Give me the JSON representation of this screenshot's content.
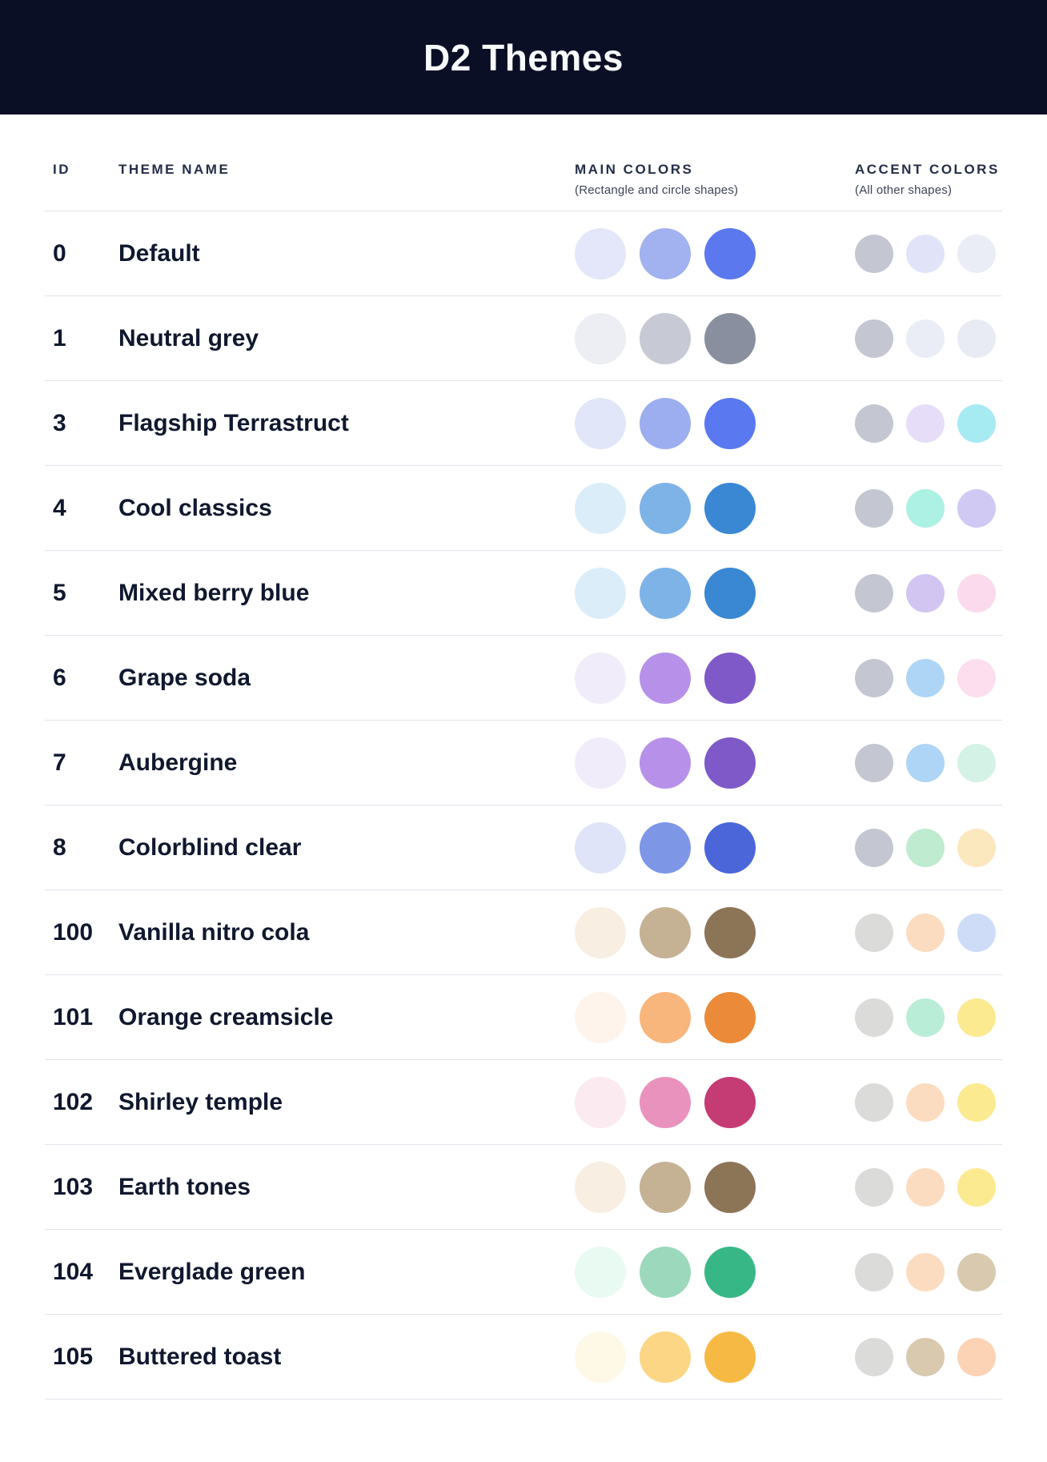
{
  "page": {
    "title": "D2 Themes"
  },
  "colors": {
    "banner_bg": "#0A0F25",
    "divider": "#E2E4ED",
    "heading_text": "#242E49",
    "row_text": "#10182F"
  },
  "table": {
    "headers": {
      "id": "ID",
      "theme_name": "THEME NAME",
      "main_colors": "MAIN COLORS",
      "main_colors_sub": "(Rectangle and circle shapes)",
      "accent_colors": "ACCENT COLORS",
      "accent_colors_sub": "(All other shapes)"
    },
    "rows": [
      {
        "id": "0",
        "name": "Default",
        "main": [
          "#E4E7F9",
          "#A2B1EF",
          "#5B78EE"
        ],
        "accent": [
          "#C4C7D2",
          "#E1E4F8",
          "#EAEDF6"
        ]
      },
      {
        "id": "1",
        "name": "Neutral grey",
        "main": [
          "#ECEEF3",
          "#C7CAD4",
          "#8A8FA0"
        ],
        "accent": [
          "#C4C7D2",
          "#EAEDF6",
          "#E8EBF4"
        ]
      },
      {
        "id": "3",
        "name": "Flagship Terrastruct",
        "main": [
          "#E2E6F9",
          "#9CADF0",
          "#5A78F0"
        ],
        "accent": [
          "#C4C7D2",
          "#E6DEF8",
          "#A6EAF2"
        ]
      },
      {
        "id": "4",
        "name": "Cool classics",
        "main": [
          "#DCEDFA",
          "#7EB3E8",
          "#3A87D4"
        ],
        "accent": [
          "#C4C7D2",
          "#ACF1E3",
          "#D0C9F4"
        ]
      },
      {
        "id": "5",
        "name": "Mixed berry blue",
        "main": [
          "#DCEDFA",
          "#7EB3E8",
          "#3A87D4"
        ],
        "accent": [
          "#C4C7D2",
          "#D2C5F1",
          "#FBDAED"
        ]
      },
      {
        "id": "6",
        "name": "Grape soda",
        "main": [
          "#F1ECFA",
          "#B791E9",
          "#8059C8"
        ],
        "accent": [
          "#C4C7D2",
          "#AED5F5",
          "#FCDEEF"
        ]
      },
      {
        "id": "7",
        "name": "Aubergine",
        "main": [
          "#F1ECFA",
          "#B791E9",
          "#8059C8"
        ],
        "accent": [
          "#C4C7D2",
          "#AED5F5",
          "#D5F2E6"
        ]
      },
      {
        "id": "8",
        "name": "Colorblind clear",
        "main": [
          "#DFE4F8",
          "#7D96E6",
          "#4A66D8"
        ],
        "accent": [
          "#C4C7D2",
          "#BFEBD1",
          "#FCE8BE"
        ]
      },
      {
        "id": "100",
        "name": "Vanilla nitro cola",
        "main": [
          "#F8EEE1",
          "#C5B295",
          "#8C7456"
        ],
        "accent": [
          "#DBDBD9",
          "#FCDCC0",
          "#CEDCF8"
        ]
      },
      {
        "id": "101",
        "name": "Orange creamsicle",
        "main": [
          "#FEF4EB",
          "#F8B57C",
          "#EB8A38"
        ],
        "accent": [
          "#DBDBD9",
          "#BAEDD8",
          "#FCEA91"
        ]
      },
      {
        "id": "102",
        "name": "Shirley temple",
        "main": [
          "#FCEAF1",
          "#EA92BE",
          "#C53B73"
        ],
        "accent": [
          "#DBDBD9",
          "#FCDCC0",
          "#FCEA91"
        ]
      },
      {
        "id": "103",
        "name": "Earth tones",
        "main": [
          "#F8EEE1",
          "#C5B295",
          "#8C7456"
        ],
        "accent": [
          "#DBDBD9",
          "#FCDCC0",
          "#FCEA91"
        ]
      },
      {
        "id": "104",
        "name": "Everglade green",
        "main": [
          "#E9FAF2",
          "#9CD9BC",
          "#38B786"
        ],
        "accent": [
          "#DBDBD9",
          "#FCDCC0",
          "#D8C9AF"
        ]
      },
      {
        "id": "105",
        "name": "Buttered toast",
        "main": [
          "#FEF8E7",
          "#FCD685",
          "#F6BA44"
        ],
        "accent": [
          "#DBDBD9",
          "#D8C9AF",
          "#FCD3B5"
        ]
      }
    ]
  }
}
